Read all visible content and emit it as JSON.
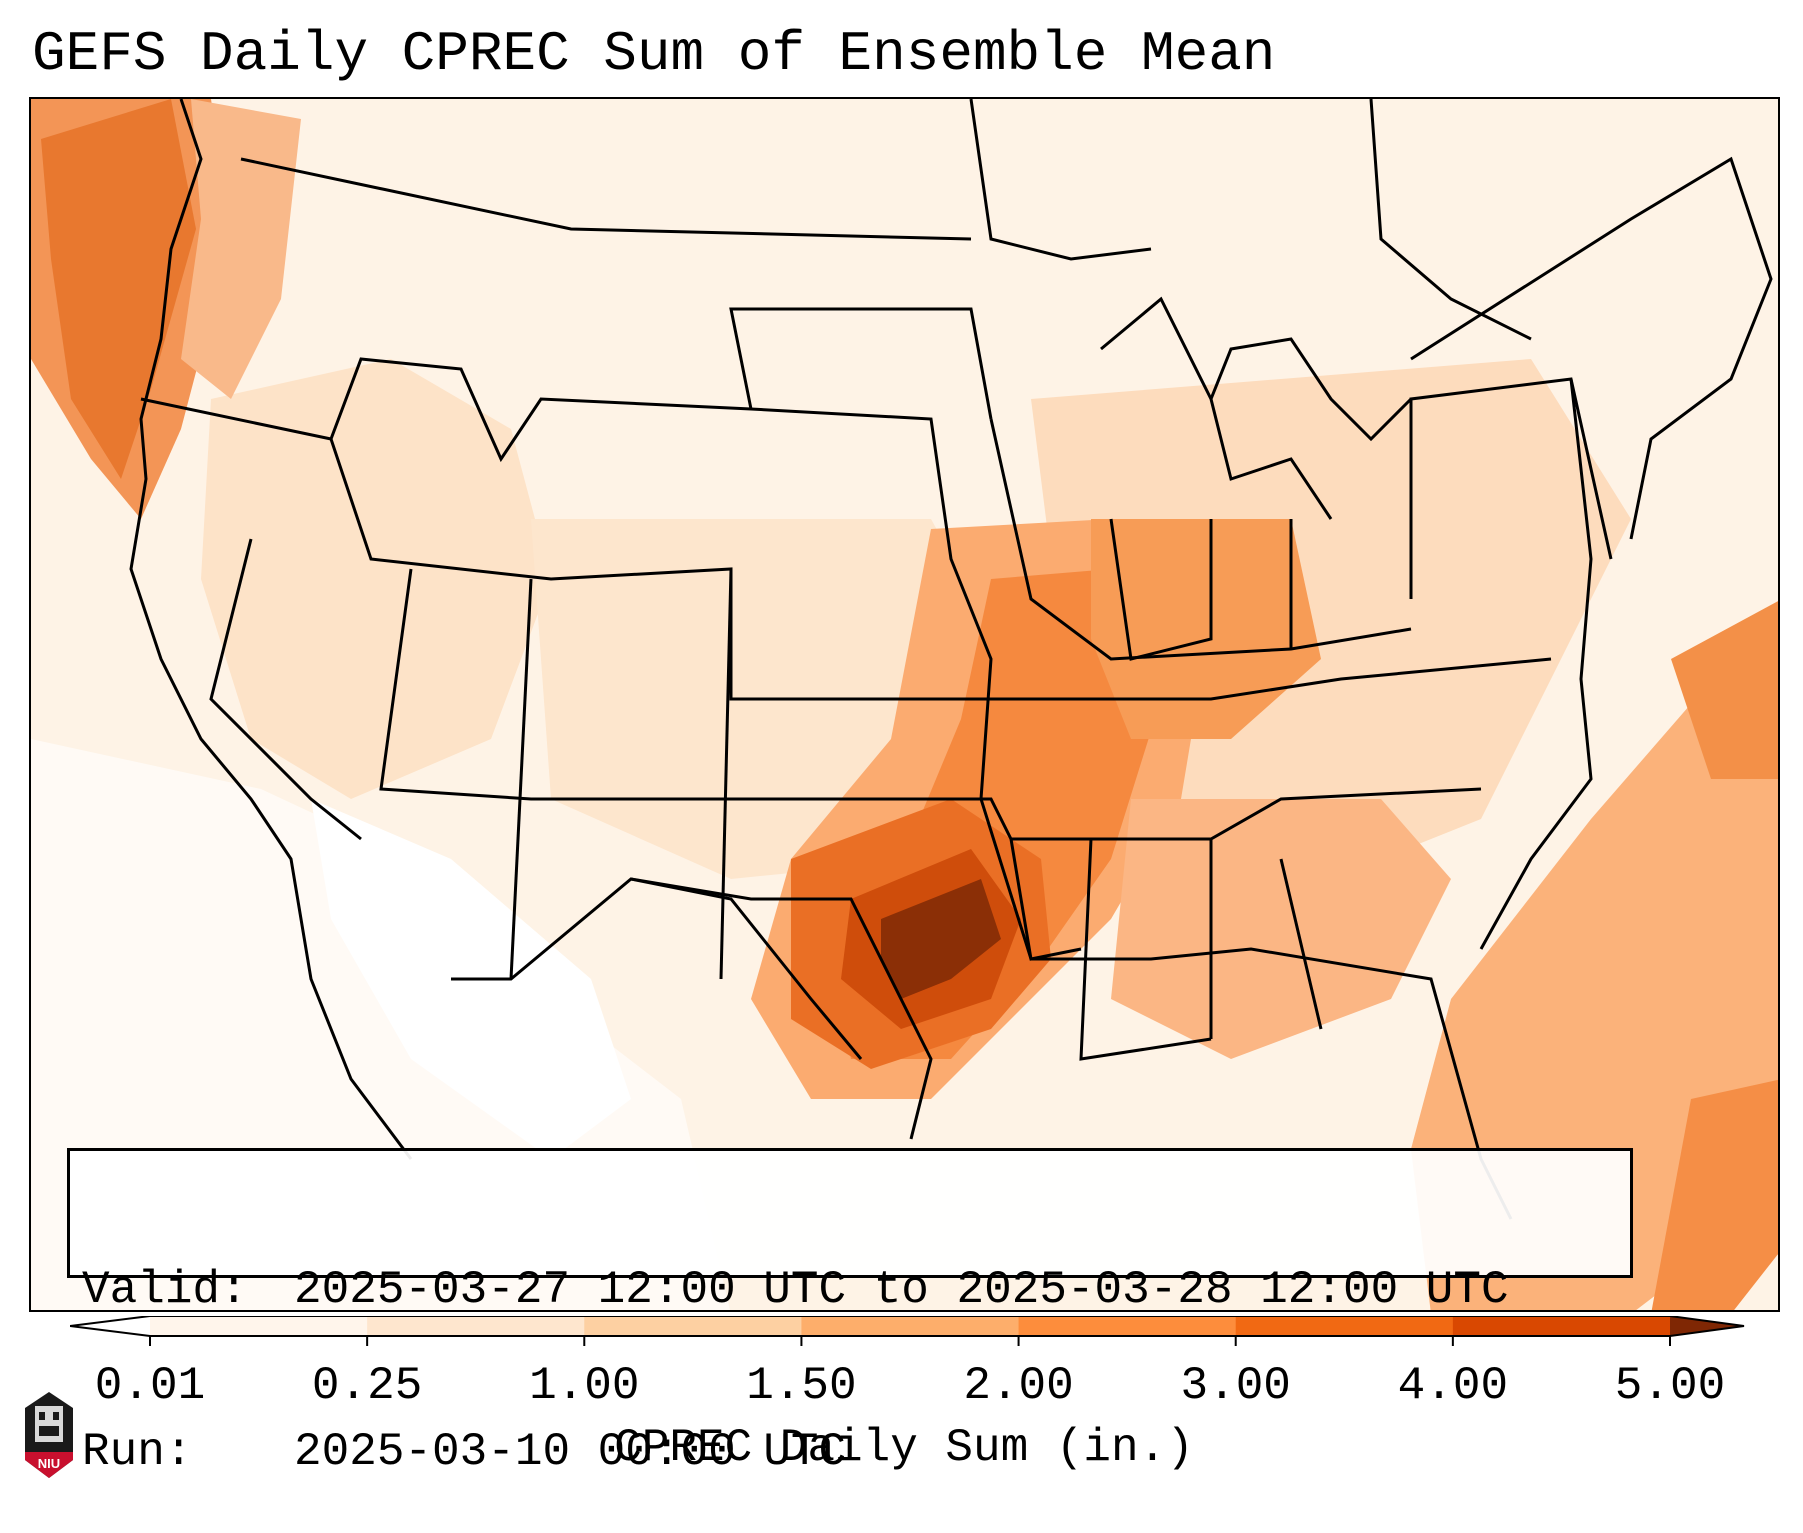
{
  "title": "GEFS Daily CPREC Sum of Ensemble Mean",
  "info_box": {
    "valid_label": "Valid:",
    "valid_value": "2025-03-27 12:00 UTC to 2025-03-28 12:00 UTC",
    "run_label": "Run:",
    "run_value": "2025-03-10 00:00 UTC"
  },
  "colorbar": {
    "label": "CPREC Daily Sum (in.)",
    "ticks": [
      "0.01",
      "0.25",
      "1.00",
      "1.50",
      "2.00",
      "3.00",
      "4.00",
      "5.00"
    ],
    "colors": [
      "#fff5eb",
      "#fee6ce",
      "#fdd0a2",
      "#fdae6b",
      "#fd8d3c",
      "#f16913",
      "#d94801",
      "#8c2d04"
    ],
    "under_color": "#ffffff",
    "over_color": "#7f2704"
  },
  "precipitation_regions": [
    {
      "name": "Pacific Northwest offshore",
      "level": "2.00-3.00"
    },
    {
      "name": "Oklahoma / North Texas core",
      "level": ">5.00"
    },
    {
      "name": "Missouri / Arkansas / Louisiana",
      "level": "2.00-3.00"
    },
    {
      "name": "Illinois / Indiana",
      "level": "2.00-3.00"
    },
    {
      "name": "Western Atlantic",
      "level": "1.50-2.00"
    }
  ],
  "logo": {
    "text": "NIU"
  }
}
